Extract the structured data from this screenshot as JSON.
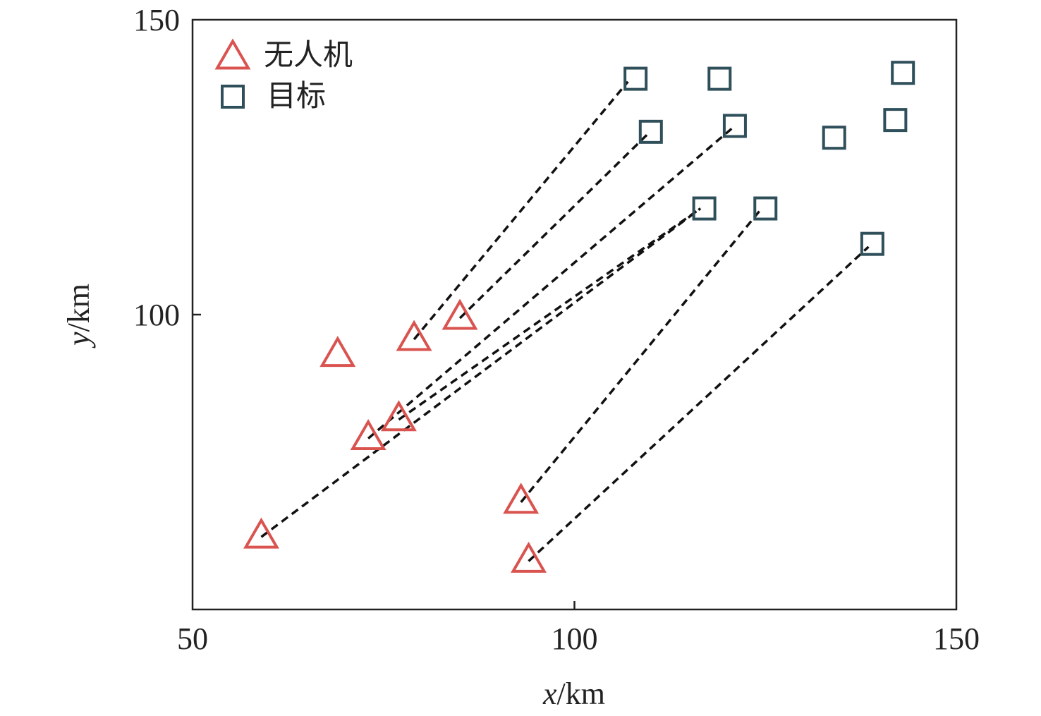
{
  "chart_data": {
    "type": "scatter",
    "title": "",
    "xlabel": {
      "var": "x",
      "unit": "/km"
    },
    "ylabel": {
      "var": "y",
      "unit": "/km"
    },
    "xlim": [
      50,
      150
    ],
    "ylim": [
      50,
      150
    ],
    "xticks": [
      "50",
      "100",
      "150"
    ],
    "yticks": [
      "100",
      "150"
    ],
    "grid": false,
    "legend_position": "top-left",
    "series": [
      {
        "name": "无人机",
        "marker": "triangle-open",
        "color": "#d9534f",
        "points": [
          [
            59.0,
            62.3
          ],
          [
            69.0,
            93.1
          ],
          [
            73.0,
            79.0
          ],
          [
            77.0,
            82.2
          ],
          [
            79.0,
            95.8
          ],
          [
            85.0,
            99.4
          ],
          [
            93.0,
            68.2
          ],
          [
            94.0,
            58.2
          ]
        ]
      },
      {
        "name": "目标",
        "marker": "square-open",
        "color": "#2f4f5a",
        "points": [
          [
            108.0,
            140.0
          ],
          [
            110.0,
            131.0
          ],
          [
            117.0,
            118.0
          ],
          [
            119.0,
            140.0
          ],
          [
            121.0,
            132.0
          ],
          [
            125.0,
            118.0
          ],
          [
            134.0,
            130.0
          ],
          [
            139.0,
            112.0
          ],
          [
            142.0,
            133.0
          ],
          [
            143.0,
            141.0
          ]
        ]
      }
    ],
    "assignments": [
      {
        "from": [
          79.0,
          95.8
        ],
        "to": [
          107.0,
          139.5
        ]
      },
      {
        "from": [
          85.0,
          99.4
        ],
        "to": [
          109.5,
          130.5
        ]
      },
      {
        "from": [
          73.0,
          79.0
        ],
        "to": [
          121.0,
          132.0
        ]
      },
      {
        "from": [
          77.0,
          82.2
        ],
        "to": [
          116.5,
          118.0
        ]
      },
      {
        "from": [
          59.0,
          62.3
        ],
        "to": [
          116.5,
          118.0
        ]
      },
      {
        "from": [
          93.0,
          68.2
        ],
        "to": [
          124.5,
          118.0
        ]
      },
      {
        "from": [
          94.0,
          58.2
        ],
        "to": [
          138.5,
          111.5
        ]
      }
    ],
    "line_style": {
      "color": "#111111",
      "dash": "dashed"
    }
  }
}
